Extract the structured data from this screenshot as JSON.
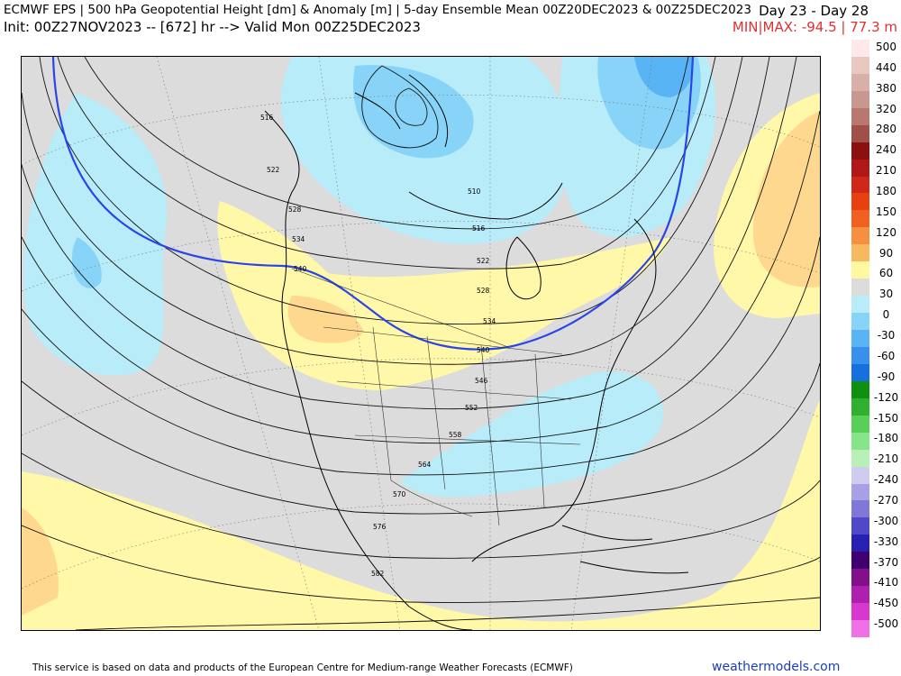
{
  "header": {
    "title_line1": "ECMWF EPS | 500 hPa Geopotential Height [dm] & Anomaly [m] | 5-day Ensemble Mean 00Z20DEC2023 & 00Z25DEC2023",
    "title_line2": "Init: 00Z27NOV2023 -- [672] hr --> Valid Mon 00Z25DEC2023",
    "day_range": "Day 23 - Day 28",
    "minmax": "MIN|MAX: -94.5 | 77.3 m"
  },
  "colorbar": {
    "labels": [
      "500",
      "440",
      "380",
      "320",
      "280",
      "240",
      "210",
      "180",
      "150",
      "120",
      "90",
      "60",
      "30",
      "0",
      "-30",
      "-60",
      "-90",
      "-120",
      "-150",
      "-180",
      "-210",
      "-240",
      "-270",
      "-300",
      "-330",
      "-370",
      "-410",
      "-450",
      "-500"
    ],
    "colors": [
      "#ffe8e8",
      "#e8c8c0",
      "#d8b0a8",
      "#c89890",
      "#b87870",
      "#a05048",
      "#8c1010",
      "#b01818",
      "#d02818",
      "#e84010",
      "#f06020",
      "#f49040",
      "#f8b860",
      "#fff8a0",
      "#dcdcdc",
      "#b8ecf8",
      "#88d4f8",
      "#58b4f4",
      "#3890ec",
      "#1870e0",
      "#109010",
      "#30b030",
      "#58d058",
      "#88e488",
      "#b8f0b8",
      "#d0ccf0",
      "#a8a0e4",
      "#8078d8",
      "#5048c8",
      "#2820b0",
      "#400070",
      "#80108c",
      "#b020b0",
      "#d838d0",
      "#f070e8"
    ]
  },
  "contour_labels": [
    {
      "text": "516"
    },
    {
      "text": "522"
    },
    {
      "text": "528"
    },
    {
      "text": "534"
    },
    {
      "text": "540"
    },
    {
      "text": "510"
    },
    {
      "text": "516"
    },
    {
      "text": "522"
    },
    {
      "text": "528"
    },
    {
      "text": "534"
    },
    {
      "text": "540"
    },
    {
      "text": "546"
    },
    {
      "text": "552"
    },
    {
      "text": "558"
    },
    {
      "text": "564"
    },
    {
      "text": "570"
    },
    {
      "text": "576"
    },
    {
      "text": "582"
    }
  ],
  "footer": {
    "credit": "This service is based on data and products of the European Centre for Medium-range Weather Forecasts (ECMWF)",
    "site": "weathermodels.com"
  },
  "colors": {
    "anomaly_zero": "#dcdcdc",
    "anomaly_pos30": "#fff8a8",
    "anomaly_neg30": "#b8ecf8",
    "contour_540": "#2a44e8",
    "minmax_text": "#e03030",
    "footer_link": "#1a3fb8"
  }
}
